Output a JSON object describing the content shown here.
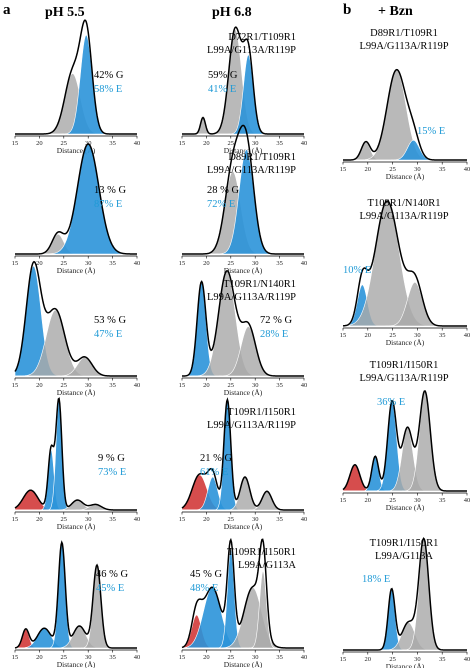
{
  "panels": {
    "a": "a",
    "b": "b"
  },
  "headers": {
    "ph55": "pH 5.5",
    "ph68": "pH 6.8",
    "bzn": "+ Bzn"
  },
  "colors": {
    "G": "#a9a9a9",
    "E": "#2b93d9",
    "red": "#d23a3a",
    "envelope": "#000000"
  },
  "chart_data": [
    {
      "type": "area",
      "id": "a1l",
      "label": "",
      "xlabel": "Distance (Å)",
      "xlim": [
        15,
        40
      ],
      "ticks": [
        15,
        20,
        25,
        30,
        35,
        40
      ],
      "annot": [
        "42% G",
        "58% E"
      ],
      "components": [
        {
          "state": "G",
          "mean": 26.8,
          "sd": 1.6,
          "amp": 0.55
        },
        {
          "state": "E",
          "mean": 29.6,
          "sd": 1.2,
          "amp": 0.9
        }
      ]
    },
    {
      "type": "area",
      "id": "a1r",
      "label": "D72R1/T109R1\nL99A/G113A/R119P",
      "xlabel": "Distance (Å)",
      "xlim": [
        15,
        40
      ],
      "ticks": [
        15,
        20,
        25,
        30,
        35,
        40
      ],
      "annot": [
        "59% G",
        "41% E"
      ],
      "components": [
        {
          "state": "G",
          "mean": 19.3,
          "sd": 0.5,
          "amp": 0.15
        },
        {
          "state": "G",
          "mean": 25.9,
          "sd": 1.3,
          "amp": 0.95
        },
        {
          "state": "E",
          "mean": 28.6,
          "sd": 1.0,
          "amp": 0.72
        }
      ]
    },
    {
      "type": "area",
      "id": "a2l",
      "label": "",
      "xlabel": "Distance (Å)",
      "xlim": [
        15,
        40
      ],
      "ticks": [
        15,
        20,
        25,
        30,
        35,
        40
      ],
      "annot": [
        "13 % G",
        "87% E"
      ],
      "components": [
        {
          "state": "G",
          "mean": 23.8,
          "sd": 1.2,
          "amp": 0.18
        },
        {
          "state": "E",
          "mean": 30.0,
          "sd": 2.2,
          "amp": 1.0
        }
      ]
    },
    {
      "type": "area",
      "id": "a2r",
      "label": "D89R1/T109R1\nL99A/G113A/R119P",
      "xlabel": "Distance (Å)",
      "xlim": [
        15,
        40
      ],
      "ticks": [
        15,
        20,
        25,
        30,
        35,
        40
      ],
      "annot": [
        "28 % G",
        "72% E"
      ],
      "components": [
        {
          "state": "G",
          "mean": 25.4,
          "sd": 1.6,
          "amp": 0.75
        },
        {
          "state": "E",
          "mean": 28.2,
          "sd": 1.5,
          "amp": 0.95
        }
      ]
    },
    {
      "type": "area",
      "id": "a3l",
      "label": "",
      "xlabel": "Distance (Å)",
      "xlim": [
        15,
        40
      ],
      "ticks": [
        15,
        20,
        25,
        30,
        35,
        40
      ],
      "annot": [
        "53 % G",
        "47% E"
      ],
      "components": [
        {
          "state": "E",
          "mean": 18.8,
          "sd": 1.5,
          "amp": 1.0
        },
        {
          "state": "G",
          "mean": 23.3,
          "sd": 1.9,
          "amp": 0.6
        },
        {
          "state": "G",
          "mean": 29.3,
          "sd": 1.5,
          "amp": 0.17
        }
      ]
    },
    {
      "type": "area",
      "id": "a3r",
      "label": "T109R1/N140R1\nL99A/G113A/R119P",
      "xlabel": "Distance (Å)",
      "xlim": [
        15,
        40
      ],
      "ticks": [
        15,
        20,
        25,
        30,
        35,
        40
      ],
      "annot": [
        "72 % G",
        "28% E"
      ],
      "components": [
        {
          "state": "E",
          "mean": 19.0,
          "sd": 0.9,
          "amp": 0.85
        },
        {
          "state": "G",
          "mean": 24.2,
          "sd": 1.7,
          "amp": 0.95
        },
        {
          "state": "G",
          "mean": 28.6,
          "sd": 1.5,
          "amp": 0.45
        }
      ]
    },
    {
      "type": "area",
      "id": "a4l",
      "label": "",
      "xlabel": "Distance (Å)",
      "xlim": [
        15,
        40
      ],
      "ticks": [
        15,
        20,
        25,
        30,
        35,
        40
      ],
      "annot": [
        "9 % G",
        "73% E"
      ],
      "components": [
        {
          "state": "R",
          "mean": 18.2,
          "sd": 1.5,
          "amp": 0.18
        },
        {
          "state": "E",
          "mean": 22.4,
          "sd": 0.6,
          "amp": 0.55
        },
        {
          "state": "E",
          "mean": 24.0,
          "sd": 0.6,
          "amp": 1.0
        },
        {
          "state": "G",
          "mean": 27.8,
          "sd": 1.2,
          "amp": 0.09
        },
        {
          "state": "G",
          "mean": 31.5,
          "sd": 1.2,
          "amp": 0.05
        }
      ]
    },
    {
      "type": "area",
      "id": "a4r",
      "label": "T109R1/I150R1\nL99A/G113A/R119P",
      "xlabel": "Distance (Å)",
      "xlim": [
        15,
        40
      ],
      "ticks": [
        15,
        20,
        25,
        30,
        35,
        40
      ],
      "annot": [
        "21 % G",
        "61% E"
      ],
      "components": [
        {
          "state": "R",
          "mean": 18.6,
          "sd": 1.5,
          "amp": 0.32
        },
        {
          "state": "E",
          "mean": 21.3,
          "sd": 1.0,
          "amp": 0.3
        },
        {
          "state": "E",
          "mean": 24.3,
          "sd": 0.7,
          "amp": 1.0
        },
        {
          "state": "G",
          "mean": 27.9,
          "sd": 1.0,
          "amp": 0.3
        },
        {
          "state": "G",
          "mean": 32.4,
          "sd": 1.0,
          "amp": 0.17
        }
      ]
    },
    {
      "type": "area",
      "id": "a5l",
      "label": "",
      "xlabel": "Distance (Å)",
      "xlim": [
        15,
        40
      ],
      "ticks": [
        15,
        20,
        25,
        30,
        35,
        40
      ],
      "annot": [
        "46 % G",
        "45% E"
      ],
      "components": [
        {
          "state": "R",
          "mean": 17.2,
          "sd": 0.7,
          "amp": 0.17
        },
        {
          "state": "E",
          "mean": 21.0,
          "sd": 1.4,
          "amp": 0.18
        },
        {
          "state": "E",
          "mean": 24.6,
          "sd": 0.7,
          "amp": 0.95
        },
        {
          "state": "G",
          "mean": 28.2,
          "sd": 1.3,
          "amp": 0.2
        },
        {
          "state": "G",
          "mean": 31.8,
          "sd": 0.8,
          "amp": 0.75
        }
      ]
    },
    {
      "type": "area",
      "id": "a5r",
      "label": "T109R1/I150R1\nL99A/G113A",
      "xlabel": "Distance (Å)",
      "xlim": [
        15,
        40
      ],
      "ticks": [
        15,
        20,
        25,
        30,
        35,
        40
      ],
      "annot": [
        "45 % G",
        "48% E"
      ],
      "components": [
        {
          "state": "R",
          "mean": 18.0,
          "sd": 1.0,
          "amp": 0.3
        },
        {
          "state": "E",
          "mean": 21.2,
          "sd": 1.8,
          "amp": 0.55
        },
        {
          "state": "E",
          "mean": 25.0,
          "sd": 0.7,
          "amp": 0.9
        },
        {
          "state": "G",
          "mean": 29.5,
          "sd": 1.8,
          "amp": 0.55
        },
        {
          "state": "G",
          "mean": 31.6,
          "sd": 0.7,
          "amp": 0.7
        }
      ]
    },
    {
      "type": "area",
      "id": "b1",
      "label": "D89R1/T109R1\nL99A/G113A/R119P",
      "xlabel": "Distance (Å)",
      "xlim": [
        15,
        40
      ],
      "ticks": [
        15,
        20,
        25,
        30,
        35,
        40
      ],
      "annot": [
        "",
        "15% E"
      ],
      "components": [
        {
          "state": "G",
          "mean": 19.6,
          "sd": 0.9,
          "amp": 0.2
        },
        {
          "state": "G",
          "mean": 25.8,
          "sd": 1.9,
          "amp": 1.0
        },
        {
          "state": "E",
          "mean": 29.2,
          "sd": 1.2,
          "amp": 0.22
        }
      ]
    },
    {
      "type": "area",
      "id": "b2",
      "label": "T109R1/N140R1\nL99A/G113A/R119P",
      "xlabel": "Distance (Å)",
      "xlim": [
        15,
        40
      ],
      "ticks": [
        15,
        20,
        25,
        30,
        35,
        40
      ],
      "annot": [
        "",
        "10% E"
      ],
      "components": [
        {
          "state": "E",
          "mean": 18.9,
          "sd": 1.0,
          "amp": 0.33
        },
        {
          "state": "G",
          "mean": 23.9,
          "sd": 2.4,
          "amp": 1.0
        },
        {
          "state": "G",
          "mean": 29.5,
          "sd": 1.5,
          "amp": 0.35
        }
      ]
    },
    {
      "type": "area",
      "id": "b3",
      "label": "T109R1/I150R1\nL99A/G113A/R119P",
      "xlabel": "Distance (Å)",
      "xlim": [
        15,
        40
      ],
      "ticks": [
        15,
        20,
        25,
        30,
        35,
        40
      ],
      "annot": [
        "",
        "36% E"
      ],
      "components": [
        {
          "state": "R",
          "mean": 17.4,
          "sd": 1.0,
          "amp": 0.25
        },
        {
          "state": "E",
          "mean": 21.5,
          "sd": 0.7,
          "amp": 0.33
        },
        {
          "state": "E",
          "mean": 24.9,
          "sd": 0.9,
          "amp": 0.85
        },
        {
          "state": "G",
          "mean": 28.0,
          "sd": 1.1,
          "amp": 0.6
        },
        {
          "state": "G",
          "mean": 31.5,
          "sd": 1.1,
          "amp": 0.95
        }
      ]
    },
    {
      "type": "area",
      "id": "b4",
      "label": "T109R1/I150R1\nL99A/G113A",
      "xlabel": "Distance (Å)",
      "xlim": [
        15,
        40
      ],
      "ticks": [
        15,
        20,
        25,
        30,
        35,
        40
      ],
      "annot": [
        "",
        "18% E"
      ],
      "components": [
        {
          "state": "E",
          "mean": 24.8,
          "sd": 0.7,
          "amp": 0.55
        },
        {
          "state": "G",
          "mean": 28.2,
          "sd": 1.3,
          "amp": 0.25
        },
        {
          "state": "G",
          "mean": 31.3,
          "sd": 1.0,
          "amp": 1.0
        }
      ]
    }
  ]
}
